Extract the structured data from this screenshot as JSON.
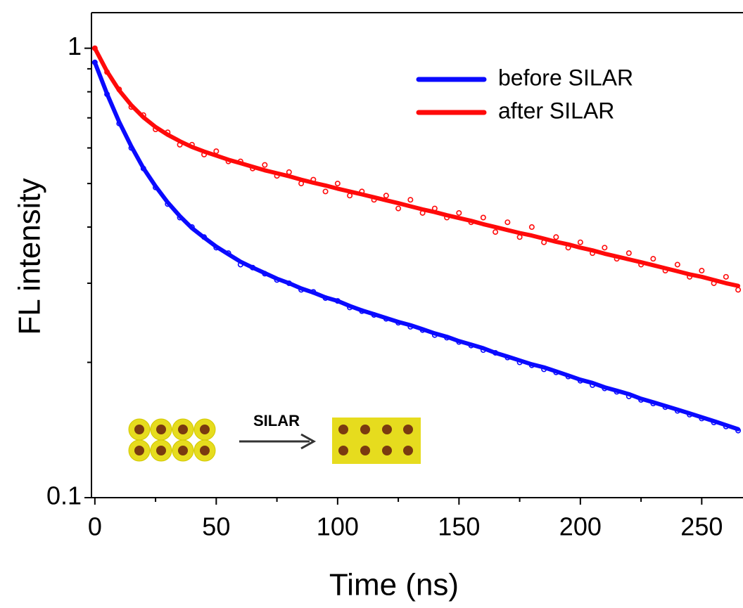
{
  "chart_data": {
    "type": "scatter",
    "x_label": "Time (ns)",
    "y_label": "FL intensity",
    "xlim": [
      -1.4,
      267
    ],
    "xticks": [
      0,
      50,
      100,
      150,
      200,
      250
    ],
    "xminor_ticks": [
      25,
      75,
      125,
      175,
      225
    ],
    "ylim": [
      0.1,
      1.2
    ],
    "yticks": [
      0.1,
      1
    ],
    "yminor_ticks": [
      0.2,
      0.3,
      0.4,
      0.5,
      0.6,
      0.7,
      0.8,
      0.9
    ],
    "log_y": true,
    "grid": false,
    "legend": "upper right",
    "annotation": "SILAR",
    "x": [
      0,
      5,
      10,
      15,
      20,
      25,
      30,
      35,
      40,
      45,
      50,
      55,
      60,
      65,
      70,
      75,
      80,
      85,
      90,
      95,
      100,
      105,
      110,
      115,
      120,
      125,
      130,
      135,
      140,
      145,
      150,
      155,
      160,
      165,
      170,
      175,
      180,
      185,
      190,
      195,
      200,
      205,
      210,
      215,
      220,
      225,
      230,
      235,
      240,
      245,
      250,
      255,
      260,
      265
    ],
    "series": [
      {
        "name": "before SILAR",
        "color": "#0a0aff",
        "values": [
          0.93,
          0.79,
          0.68,
          0.6,
          0.54,
          0.49,
          0.45,
          0.42,
          0.4,
          0.38,
          0.36,
          0.35,
          0.33,
          0.325,
          0.315,
          0.305,
          0.3,
          0.29,
          0.287,
          0.278,
          0.274,
          0.265,
          0.26,
          0.255,
          0.25,
          0.245,
          0.24,
          0.236,
          0.23,
          0.227,
          0.222,
          0.218,
          0.213,
          0.21,
          0.205,
          0.2,
          0.197,
          0.193,
          0.19,
          0.186,
          0.182,
          0.178,
          0.175,
          0.172,
          0.168,
          0.165,
          0.162,
          0.159,
          0.156,
          0.153,
          0.15,
          0.147,
          0.144,
          0.141
        ],
        "fit": [
          0.93,
          0.792,
          0.686,
          0.605,
          0.541,
          0.493,
          0.454,
          0.423,
          0.398,
          0.379,
          0.362,
          0.348,
          0.335,
          0.325,
          0.316,
          0.307,
          0.3,
          0.292,
          0.286,
          0.279,
          0.274,
          0.267,
          0.261,
          0.256,
          0.251,
          0.246,
          0.242,
          0.237,
          0.232,
          0.228,
          0.223,
          0.219,
          0.215,
          0.21,
          0.206,
          0.202,
          0.198,
          0.195,
          0.191,
          0.187,
          0.183,
          0.18,
          0.176,
          0.173,
          0.17,
          0.166,
          0.163,
          0.16,
          0.157,
          0.154,
          0.151,
          0.148,
          0.145,
          0.142
        ]
      },
      {
        "name": "after SILAR",
        "color": "#ff0a0a",
        "values": [
          1.0,
          0.885,
          0.81,
          0.74,
          0.71,
          0.66,
          0.65,
          0.61,
          0.61,
          0.58,
          0.59,
          0.56,
          0.56,
          0.54,
          0.55,
          0.52,
          0.53,
          0.5,
          0.51,
          0.48,
          0.5,
          0.47,
          0.48,
          0.46,
          0.47,
          0.44,
          0.46,
          0.43,
          0.44,
          0.42,
          0.43,
          0.41,
          0.42,
          0.39,
          0.41,
          0.38,
          0.4,
          0.37,
          0.38,
          0.36,
          0.37,
          0.35,
          0.36,
          0.34,
          0.35,
          0.33,
          0.34,
          0.32,
          0.33,
          0.31,
          0.32,
          0.3,
          0.31,
          0.29
        ],
        "fit": [
          1.0,
          0.888,
          0.806,
          0.747,
          0.702,
          0.668,
          0.642,
          0.621,
          0.603,
          0.589,
          0.577,
          0.565,
          0.555,
          0.545,
          0.535,
          0.527,
          0.519,
          0.51,
          0.502,
          0.495,
          0.487,
          0.48,
          0.473,
          0.466,
          0.459,
          0.452,
          0.445,
          0.438,
          0.432,
          0.425,
          0.419,
          0.413,
          0.406,
          0.4,
          0.394,
          0.388,
          0.383,
          0.377,
          0.371,
          0.366,
          0.36,
          0.355,
          0.349,
          0.344,
          0.339,
          0.334,
          0.329,
          0.324,
          0.319,
          0.314,
          0.31,
          0.305,
          0.3,
          0.296
        ]
      }
    ]
  }
}
